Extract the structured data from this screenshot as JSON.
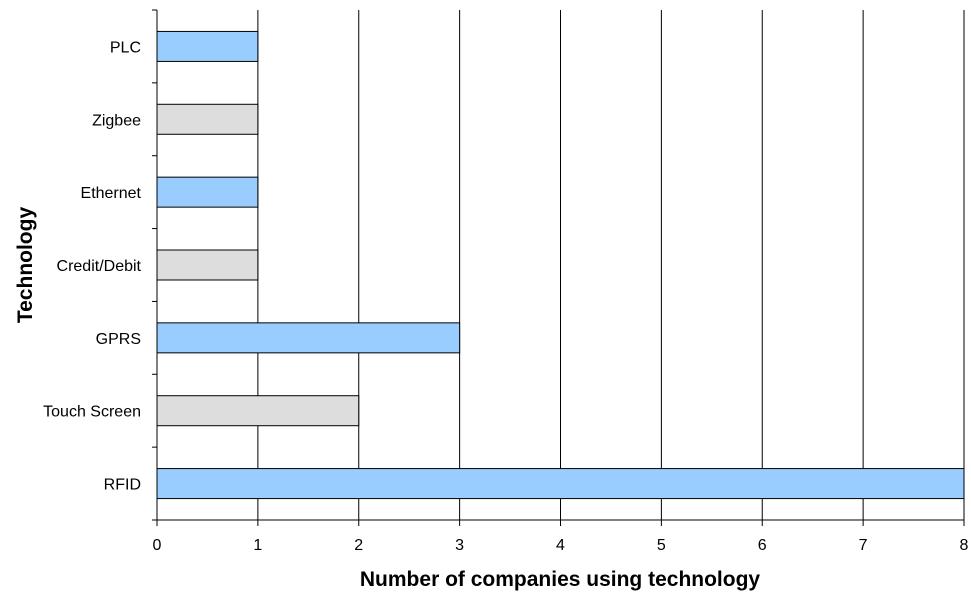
{
  "chart_data": {
    "type": "bar",
    "orientation": "horizontal",
    "categories": [
      "RFID",
      "Touch Screen",
      "GPRS",
      "Credit/Debit",
      "Ethernet",
      "Zigbee",
      "PLC"
    ],
    "values": [
      8,
      2,
      3,
      1,
      1,
      1,
      1
    ],
    "bar_colors": [
      "#99ccff",
      "#dddddd",
      "#99ccff",
      "#dddddd",
      "#99ccff",
      "#dddddd",
      "#99ccff"
    ],
    "xlabel": "Number of companies using technology",
    "ylabel": "Technology",
    "xlim": [
      0,
      8
    ],
    "xticks": [
      "0",
      "1",
      "2",
      "3",
      "4",
      "5",
      "6",
      "7",
      "8"
    ],
    "grid": "vertical",
    "legend": "none"
  }
}
